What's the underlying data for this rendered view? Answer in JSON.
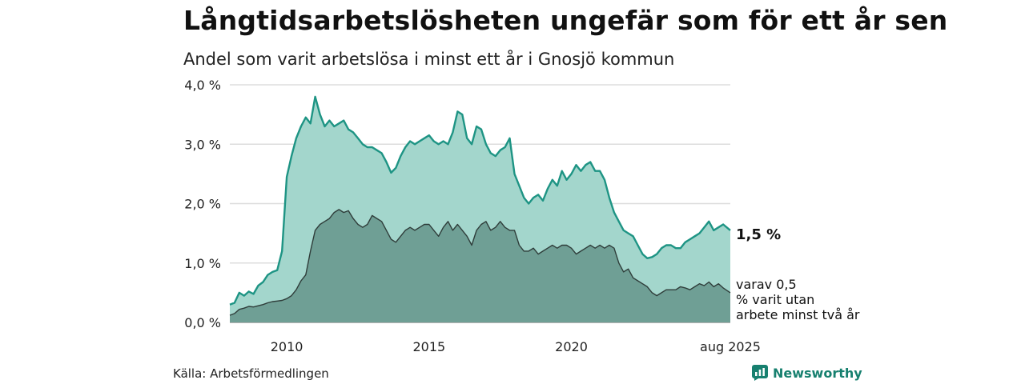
{
  "header": {
    "title": "Långtidsarbetslösheten ungefär som för ett år sen",
    "subtitle": "Andel som varit arbetslösa i minst ett år i Gnosjö kommun"
  },
  "footer": {
    "source": "Källa: Arbetsförmedlingen",
    "brand": "Newsworthy"
  },
  "colors": {
    "outer_fill": "#a3d6cc",
    "outer_line": "#1e9484",
    "inner_fill": "#6f9f95",
    "inner_line": "#2f3d3a",
    "grid": "#dddddd",
    "brand": "#17806f"
  },
  "chart_data": {
    "type": "area",
    "title": "Långtidsarbetslösheten ungefär som för ett år sen",
    "subtitle": "Andel som varit arbetslösa i minst ett år i Gnosjö kommun",
    "xlabel": "",
    "ylabel": "",
    "xlim": [
      "2008-01",
      "2025-08"
    ],
    "ylim": [
      0,
      4
    ],
    "y_ticks": [
      {
        "value": 0,
        "label": "0,0 %"
      },
      {
        "value": 1,
        "label": "1,0 %"
      },
      {
        "value": 2,
        "label": "2,0 %"
      },
      {
        "value": 3,
        "label": "3,0 %"
      },
      {
        "value": 4,
        "label": "4,0 %"
      }
    ],
    "x_ticks": [
      {
        "value": "2010-01",
        "label": "2010"
      },
      {
        "value": "2015-01",
        "label": "2015"
      },
      {
        "value": "2020-01",
        "label": "2020"
      },
      {
        "value": "2025-08",
        "label": "aug 2025"
      }
    ],
    "grid": true,
    "series": [
      {
        "name": "",
        "end_label": "1,5 %",
        "points": [
          [
            "2008-01",
            0.3
          ],
          [
            "2008-03",
            0.33
          ],
          [
            "2008-05",
            0.5
          ],
          [
            "2008-07",
            0.45
          ],
          [
            "2008-09",
            0.52
          ],
          [
            "2008-11",
            0.48
          ],
          [
            "2009-01",
            0.62
          ],
          [
            "2009-03",
            0.68
          ],
          [
            "2009-05",
            0.8
          ],
          [
            "2009-07",
            0.85
          ],
          [
            "2009-09",
            0.88
          ],
          [
            "2009-11",
            1.2
          ],
          [
            "2010-01",
            2.45
          ],
          [
            "2010-03",
            2.8
          ],
          [
            "2010-05",
            3.1
          ],
          [
            "2010-07",
            3.3
          ],
          [
            "2010-09",
            3.45
          ],
          [
            "2010-11",
            3.35
          ],
          [
            "2011-01",
            3.8
          ],
          [
            "2011-03",
            3.5
          ],
          [
            "2011-05",
            3.3
          ],
          [
            "2011-07",
            3.4
          ],
          [
            "2011-09",
            3.3
          ],
          [
            "2011-11",
            3.35
          ],
          [
            "2012-01",
            3.4
          ],
          [
            "2012-03",
            3.25
          ],
          [
            "2012-05",
            3.2
          ],
          [
            "2012-07",
            3.1
          ],
          [
            "2012-09",
            3.0
          ],
          [
            "2012-11",
            2.95
          ],
          [
            "2013-01",
            2.95
          ],
          [
            "2013-03",
            2.9
          ],
          [
            "2013-05",
            2.85
          ],
          [
            "2013-07",
            2.7
          ],
          [
            "2013-09",
            2.52
          ],
          [
            "2013-11",
            2.6
          ],
          [
            "2014-01",
            2.8
          ],
          [
            "2014-03",
            2.95
          ],
          [
            "2014-05",
            3.05
          ],
          [
            "2014-07",
            3.0
          ],
          [
            "2014-09",
            3.05
          ],
          [
            "2014-11",
            3.1
          ],
          [
            "2015-01",
            3.15
          ],
          [
            "2015-03",
            3.05
          ],
          [
            "2015-05",
            3.0
          ],
          [
            "2015-07",
            3.05
          ],
          [
            "2015-09",
            3.0
          ],
          [
            "2015-11",
            3.2
          ],
          [
            "2016-01",
            3.55
          ],
          [
            "2016-03",
            3.5
          ],
          [
            "2016-05",
            3.1
          ],
          [
            "2016-07",
            3.0
          ],
          [
            "2016-09",
            3.3
          ],
          [
            "2016-11",
            3.25
          ],
          [
            "2017-01",
            3.0
          ],
          [
            "2017-03",
            2.85
          ],
          [
            "2017-05",
            2.8
          ],
          [
            "2017-07",
            2.9
          ],
          [
            "2017-09",
            2.95
          ],
          [
            "2017-11",
            3.1
          ],
          [
            "2018-01",
            2.5
          ],
          [
            "2018-03",
            2.3
          ],
          [
            "2018-05",
            2.1
          ],
          [
            "2018-07",
            2.0
          ],
          [
            "2018-09",
            2.1
          ],
          [
            "2018-11",
            2.15
          ],
          [
            "2019-01",
            2.05
          ],
          [
            "2019-03",
            2.25
          ],
          [
            "2019-05",
            2.4
          ],
          [
            "2019-07",
            2.3
          ],
          [
            "2019-09",
            2.55
          ],
          [
            "2019-11",
            2.4
          ],
          [
            "2020-01",
            2.5
          ],
          [
            "2020-03",
            2.65
          ],
          [
            "2020-05",
            2.55
          ],
          [
            "2020-07",
            2.65
          ],
          [
            "2020-09",
            2.7
          ],
          [
            "2020-11",
            2.55
          ],
          [
            "2021-01",
            2.55
          ],
          [
            "2021-03",
            2.4
          ],
          [
            "2021-05",
            2.1
          ],
          [
            "2021-07",
            1.85
          ],
          [
            "2021-09",
            1.7
          ],
          [
            "2021-11",
            1.55
          ],
          [
            "2022-01",
            1.5
          ],
          [
            "2022-03",
            1.45
          ],
          [
            "2022-05",
            1.3
          ],
          [
            "2022-07",
            1.15
          ],
          [
            "2022-09",
            1.08
          ],
          [
            "2022-11",
            1.1
          ],
          [
            "2023-01",
            1.15
          ],
          [
            "2023-03",
            1.25
          ],
          [
            "2023-05",
            1.3
          ],
          [
            "2023-07",
            1.3
          ],
          [
            "2023-09",
            1.25
          ],
          [
            "2023-11",
            1.25
          ],
          [
            "2024-01",
            1.35
          ],
          [
            "2024-03",
            1.4
          ],
          [
            "2024-05",
            1.45
          ],
          [
            "2024-07",
            1.5
          ],
          [
            "2024-09",
            1.6
          ],
          [
            "2024-11",
            1.7
          ],
          [
            "2025-01",
            1.55
          ],
          [
            "2025-03",
            1.6
          ],
          [
            "2025-05",
            1.65
          ],
          [
            "2025-08",
            1.55
          ]
        ]
      },
      {
        "name": "",
        "end_label": "varav 0,5 % varit utan arbete minst två år",
        "points": [
          [
            "2008-01",
            0.12
          ],
          [
            "2008-03",
            0.15
          ],
          [
            "2008-05",
            0.22
          ],
          [
            "2008-07",
            0.24
          ],
          [
            "2008-09",
            0.27
          ],
          [
            "2008-11",
            0.26
          ],
          [
            "2009-01",
            0.28
          ],
          [
            "2009-03",
            0.3
          ],
          [
            "2009-05",
            0.33
          ],
          [
            "2009-07",
            0.35
          ],
          [
            "2009-09",
            0.36
          ],
          [
            "2009-11",
            0.37
          ],
          [
            "2010-01",
            0.4
          ],
          [
            "2010-03",
            0.45
          ],
          [
            "2010-05",
            0.55
          ],
          [
            "2010-07",
            0.7
          ],
          [
            "2010-09",
            0.8
          ],
          [
            "2010-11",
            1.2
          ],
          [
            "2011-01",
            1.55
          ],
          [
            "2011-03",
            1.65
          ],
          [
            "2011-05",
            1.7
          ],
          [
            "2011-07",
            1.75
          ],
          [
            "2011-09",
            1.85
          ],
          [
            "2011-11",
            1.9
          ],
          [
            "2012-01",
            1.85
          ],
          [
            "2012-03",
            1.88
          ],
          [
            "2012-05",
            1.75
          ],
          [
            "2012-07",
            1.65
          ],
          [
            "2012-09",
            1.6
          ],
          [
            "2012-11",
            1.65
          ],
          [
            "2013-01",
            1.8
          ],
          [
            "2013-03",
            1.75
          ],
          [
            "2013-05",
            1.7
          ],
          [
            "2013-07",
            1.55
          ],
          [
            "2013-09",
            1.4
          ],
          [
            "2013-11",
            1.35
          ],
          [
            "2014-01",
            1.45
          ],
          [
            "2014-03",
            1.55
          ],
          [
            "2014-05",
            1.6
          ],
          [
            "2014-07",
            1.55
          ],
          [
            "2014-09",
            1.6
          ],
          [
            "2014-11",
            1.65
          ],
          [
            "2015-01",
            1.65
          ],
          [
            "2015-03",
            1.55
          ],
          [
            "2015-05",
            1.45
          ],
          [
            "2015-07",
            1.6
          ],
          [
            "2015-09",
            1.7
          ],
          [
            "2015-11",
            1.55
          ],
          [
            "2016-01",
            1.65
          ],
          [
            "2016-03",
            1.55
          ],
          [
            "2016-05",
            1.45
          ],
          [
            "2016-07",
            1.3
          ],
          [
            "2016-09",
            1.55
          ],
          [
            "2016-11",
            1.65
          ],
          [
            "2017-01",
            1.7
          ],
          [
            "2017-03",
            1.55
          ],
          [
            "2017-05",
            1.6
          ],
          [
            "2017-07",
            1.7
          ],
          [
            "2017-09",
            1.6
          ],
          [
            "2017-11",
            1.55
          ],
          [
            "2018-01",
            1.55
          ],
          [
            "2018-03",
            1.3
          ],
          [
            "2018-05",
            1.2
          ],
          [
            "2018-07",
            1.2
          ],
          [
            "2018-09",
            1.25
          ],
          [
            "2018-11",
            1.15
          ],
          [
            "2019-01",
            1.2
          ],
          [
            "2019-03",
            1.25
          ],
          [
            "2019-05",
            1.3
          ],
          [
            "2019-07",
            1.25
          ],
          [
            "2019-09",
            1.3
          ],
          [
            "2019-11",
            1.3
          ],
          [
            "2020-01",
            1.25
          ],
          [
            "2020-03",
            1.15
          ],
          [
            "2020-05",
            1.2
          ],
          [
            "2020-07",
            1.25
          ],
          [
            "2020-09",
            1.3
          ],
          [
            "2020-11",
            1.25
          ],
          [
            "2021-01",
            1.3
          ],
          [
            "2021-03",
            1.25
          ],
          [
            "2021-05",
            1.3
          ],
          [
            "2021-07",
            1.25
          ],
          [
            "2021-09",
            1.0
          ],
          [
            "2021-11",
            0.85
          ],
          [
            "2022-01",
            0.9
          ],
          [
            "2022-03",
            0.75
          ],
          [
            "2022-05",
            0.7
          ],
          [
            "2022-07",
            0.65
          ],
          [
            "2022-09",
            0.6
          ],
          [
            "2022-11",
            0.5
          ],
          [
            "2023-01",
            0.45
          ],
          [
            "2023-03",
            0.5
          ],
          [
            "2023-05",
            0.55
          ],
          [
            "2023-07",
            0.55
          ],
          [
            "2023-09",
            0.55
          ],
          [
            "2023-11",
            0.6
          ],
          [
            "2024-01",
            0.58
          ],
          [
            "2024-03",
            0.55
          ],
          [
            "2024-05",
            0.6
          ],
          [
            "2024-07",
            0.65
          ],
          [
            "2024-09",
            0.62
          ],
          [
            "2024-11",
            0.68
          ],
          [
            "2025-01",
            0.6
          ],
          [
            "2025-03",
            0.65
          ],
          [
            "2025-05",
            0.58
          ],
          [
            "2025-08",
            0.5
          ]
        ]
      }
    ]
  }
}
